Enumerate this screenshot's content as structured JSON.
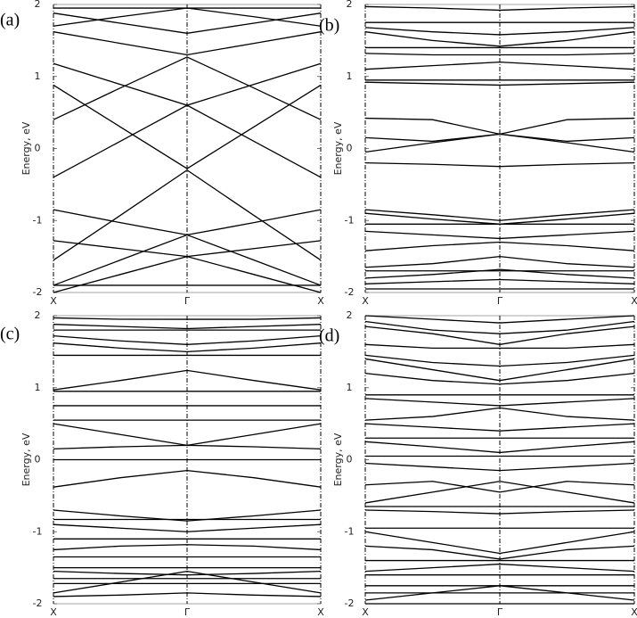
{
  "chart_data": [
    {
      "type": "line",
      "panel_label": "(a)",
      "ylabel": "Energy, eV",
      "categories": [
        "X",
        null,
        "Γ",
        null,
        "X"
      ],
      "ylim": [
        -2,
        2
      ],
      "yticks": [
        -2,
        -1,
        0,
        1,
        2
      ],
      "grid": false,
      "color": "#000000",
      "series": [
        {
          "values": [
            1.95,
            1.95,
            1.95,
            1.95,
            1.95
          ]
        },
        {
          "values": [
            1.88,
            1.74,
            1.6,
            1.74,
            1.88
          ]
        },
        {
          "values": [
            1.7,
            1.83,
            1.95,
            1.83,
            1.7
          ]
        },
        {
          "values": [
            1.62,
            1.46,
            1.3,
            1.46,
            1.62
          ]
        },
        {
          "values": [
            1.18,
            0.89,
            0.6,
            0.89,
            1.18
          ]
        },
        {
          "values": [
            0.88,
            0.3,
            -0.28,
            0.3,
            0.88
          ]
        },
        {
          "values": [
            0.4,
            0.84,
            1.27,
            0.84,
            0.4
          ]
        },
        {
          "values": [
            -0.4,
            0.1,
            0.6,
            0.1,
            -0.4
          ]
        },
        {
          "values": [
            -0.85,
            -1.03,
            -1.2,
            -1.03,
            -0.85
          ]
        },
        {
          "values": [
            -1.28,
            -1.39,
            -1.5,
            -1.39,
            -1.28
          ]
        },
        {
          "values": [
            -1.55,
            -0.93,
            -0.3,
            -0.93,
            -1.55
          ]
        },
        {
          "values": [
            -1.9,
            -1.55,
            -1.2,
            -1.55,
            -1.9
          ]
        },
        {
          "values": [
            -2,
            -1.75,
            -1.5,
            -1.75,
            -2
          ]
        },
        {
          "values": [
            -1.9,
            -1.9,
            -1.9,
            -1.9,
            -1.9
          ]
        }
      ]
    },
    {
      "type": "line",
      "panel_label": "(b)",
      "ylabel": "Energy, eV",
      "categories": [
        "X",
        null,
        "Γ",
        null,
        "X"
      ],
      "ylim": [
        -2,
        2
      ],
      "yticks": [
        -2,
        -1,
        0,
        1,
        2
      ],
      "grid": false,
      "color": "#000000",
      "series": [
        {
          "values": [
            1.97,
            1.95,
            1.92,
            1.95,
            1.97
          ]
        },
        {
          "values": [
            1.75,
            1.75,
            1.75,
            1.75,
            1.75
          ]
        },
        {
          "values": [
            1.68,
            1.62,
            1.58,
            1.62,
            1.68
          ]
        },
        {
          "values": [
            1.62,
            1.5,
            1.42,
            1.5,
            1.62
          ]
        },
        {
          "values": [
            1.4,
            1.4,
            1.4,
            1.4,
            1.4
          ]
        },
        {
          "values": [
            1.32,
            1.3,
            1.3,
            1.3,
            1.32
          ]
        },
        {
          "values": [
            1.1,
            1.15,
            1.2,
            1.15,
            1.1
          ]
        },
        {
          "values": [
            0.95,
            0.95,
            0.95,
            0.95,
            0.95
          ]
        },
        {
          "values": [
            0.92,
            0.9,
            0.88,
            0.9,
            0.92
          ]
        },
        {
          "values": [
            0.42,
            0.4,
            0.2,
            0.4,
            0.42
          ]
        },
        {
          "values": [
            0.15,
            0.1,
            0.2,
            0.1,
            0.15
          ]
        },
        {
          "values": [
            -0.05,
            0.08,
            0.2,
            0.08,
            -0.05
          ]
        },
        {
          "values": [
            -0.2,
            -0.22,
            -0.25,
            -0.22,
            -0.2
          ]
        },
        {
          "values": [
            -0.85,
            -0.92,
            -1.0,
            -0.92,
            -0.85
          ]
        },
        {
          "values": [
            -0.9,
            -0.98,
            -1.05,
            -0.98,
            -0.9
          ]
        },
        {
          "values": [
            -1.05,
            -1.05,
            -1.05,
            -1.05,
            -1.05
          ]
        },
        {
          "values": [
            -1.15,
            -1.2,
            -1.25,
            -1.2,
            -1.15
          ]
        },
        {
          "values": [
            -1.42,
            -1.35,
            -1.3,
            -1.35,
            -1.42
          ]
        },
        {
          "values": [
            -1.65,
            -1.6,
            -1.5,
            -1.6,
            -1.65
          ]
        },
        {
          "values": [
            -1.7,
            -1.7,
            -1.7,
            -1.7,
            -1.7
          ]
        },
        {
          "values": [
            -1.8,
            -1.75,
            -1.68,
            -1.75,
            -1.8
          ]
        },
        {
          "values": [
            -1.88,
            -1.85,
            -1.82,
            -1.85,
            -1.88
          ]
        },
        {
          "values": [
            -1.95,
            -1.95,
            -1.95,
            -1.95,
            -1.95
          ]
        }
      ]
    },
    {
      "type": "line",
      "panel_label": "(c)",
      "ylabel": "Energy, eV",
      "categories": [
        "X",
        null,
        "Γ",
        null,
        "X"
      ],
      "ylim": [
        -2,
        2
      ],
      "yticks": [
        -2,
        -1,
        0,
        1,
        2
      ],
      "grid": false,
      "color": "#000000",
      "series": [
        {
          "values": [
            1.97,
            1.95,
            1.95,
            1.95,
            1.97
          ]
        },
        {
          "values": [
            1.88,
            1.85,
            1.82,
            1.85,
            1.88
          ]
        },
        {
          "values": [
            1.8,
            1.8,
            1.8,
            1.8,
            1.8
          ]
        },
        {
          "values": [
            1.72,
            1.65,
            1.6,
            1.65,
            1.72
          ]
        },
        {
          "values": [
            1.62,
            1.55,
            1.5,
            1.55,
            1.62
          ]
        },
        {
          "values": [
            1.45,
            1.45,
            1.45,
            1.45,
            1.45
          ]
        },
        {
          "values": [
            0.97,
            1.1,
            1.24,
            1.1,
            0.97
          ]
        },
        {
          "values": [
            0.95,
            0.95,
            0.95,
            0.95,
            0.95
          ]
        },
        {
          "values": [
            0.75,
            0.75,
            0.75,
            0.75,
            0.75
          ]
        },
        {
          "values": [
            0.55,
            0.55,
            0.55,
            0.55,
            0.55
          ]
        },
        {
          "values": [
            0.5,
            0.35,
            0.2,
            0.35,
            0.5
          ]
        },
        {
          "values": [
            0.15,
            0.18,
            0.2,
            0.18,
            0.15
          ]
        },
        {
          "values": [
            0,
            0,
            0,
            0,
            0
          ]
        },
        {
          "values": [
            -0.38,
            -0.25,
            -0.15,
            -0.25,
            -0.38
          ]
        },
        {
          "values": [
            -0.7,
            -0.78,
            -0.85,
            -0.78,
            -0.7
          ]
        },
        {
          "values": [
            -0.83,
            -0.83,
            -0.83,
            -0.83,
            -0.83
          ]
        },
        {
          "values": [
            -0.9,
            -0.95,
            -1.0,
            -0.95,
            -0.9
          ]
        },
        {
          "values": [
            -1.1,
            -1.1,
            -1.1,
            -1.1,
            -1.1
          ]
        },
        {
          "values": [
            -1.25,
            -1.2,
            -1.18,
            -1.2,
            -1.25
          ]
        },
        {
          "values": [
            -1.35,
            -1.35,
            -1.35,
            -1.35,
            -1.35
          ]
        },
        {
          "values": [
            -1.5,
            -1.5,
            -1.5,
            -1.5,
            -1.5
          ]
        },
        {
          "values": [
            -1.55,
            -1.58,
            -1.6,
            -1.58,
            -1.55
          ]
        },
        {
          "values": [
            -1.65,
            -1.65,
            -1.65,
            -1.65,
            -1.65
          ]
        },
        {
          "values": [
            -1.72,
            -1.72,
            -1.72,
            -1.72,
            -1.72
          ]
        },
        {
          "values": [
            -1.85,
            -1.7,
            -1.55,
            -1.7,
            -1.85
          ]
        },
        {
          "values": [
            -1.9,
            -1.88,
            -1.85,
            -1.88,
            -1.9
          ]
        }
      ]
    },
    {
      "type": "line",
      "panel_label": "(d)",
      "ylabel": "Energy, eV",
      "categories": [
        "X",
        null,
        "Γ",
        null,
        "X"
      ],
      "ylim": [
        -2,
        2
      ],
      "yticks": [
        -2,
        -1,
        0,
        1,
        2
      ],
      "grid": false,
      "color": "#000000",
      "series": [
        {
          "values": [
            2.0,
            1.95,
            1.9,
            1.95,
            2.0
          ]
        },
        {
          "values": [
            1.92,
            1.8,
            1.75,
            1.8,
            1.92
          ]
        },
        {
          "values": [
            1.85,
            1.75,
            1.6,
            1.75,
            1.85
          ]
        },
        {
          "values": [
            1.6,
            1.55,
            1.55,
            1.55,
            1.6
          ]
        },
        {
          "values": [
            1.45,
            1.35,
            1.3,
            1.35,
            1.45
          ]
        },
        {
          "values": [
            1.4,
            1.25,
            1.1,
            1.25,
            1.4
          ]
        },
        {
          "values": [
            1.2,
            1.1,
            1.05,
            1.1,
            1.2
          ]
        },
        {
          "values": [
            0.9,
            0.9,
            0.9,
            0.9,
            0.9
          ]
        },
        {
          "values": [
            0.85,
            0.8,
            0.75,
            0.8,
            0.85
          ]
        },
        {
          "values": [
            0.55,
            0.6,
            0.72,
            0.6,
            0.55
          ]
        },
        {
          "values": [
            0.5,
            0.45,
            0.4,
            0.45,
            0.5
          ]
        },
        {
          "values": [
            0.3,
            0.3,
            0.3,
            0.3,
            0.3
          ]
        },
        {
          "values": [
            0.25,
            0.18,
            0.1,
            0.18,
            0.25
          ]
        },
        {
          "values": [
            0.05,
            0.05,
            0.05,
            0.05,
            0.05
          ]
        },
        {
          "values": [
            -0.05,
            -0.1,
            -0.15,
            -0.1,
            -0.05
          ]
        },
        {
          "values": [
            -0.35,
            -0.3,
            -0.45,
            -0.3,
            -0.35
          ]
        },
        {
          "values": [
            -0.6,
            -0.45,
            -0.3,
            -0.45,
            -0.6
          ]
        },
        {
          "values": [
            -0.65,
            -0.65,
            -0.65,
            -0.65,
            -0.65
          ]
        },
        {
          "values": [
            -0.7,
            -0.72,
            -0.75,
            -0.72,
            -0.7
          ]
        },
        {
          "values": [
            -0.95,
            -0.95,
            -0.95,
            -0.95,
            -0.95
          ]
        },
        {
          "values": [
            -1.0,
            -1.15,
            -1.3,
            -1.15,
            -1.0
          ]
        },
        {
          "values": [
            -1.2,
            -1.25,
            -1.38,
            -1.25,
            -1.2
          ]
        },
        {
          "values": [
            -1.4,
            -1.4,
            -1.4,
            -1.4,
            -1.4
          ]
        },
        {
          "values": [
            -1.55,
            -1.5,
            -1.45,
            -1.5,
            -1.55
          ]
        },
        {
          "values": [
            -1.6,
            -1.6,
            -1.6,
            -1.6,
            -1.6
          ]
        },
        {
          "values": [
            -1.75,
            -1.75,
            -1.75,
            -1.75,
            -1.75
          ]
        },
        {
          "values": [
            -1.85,
            -1.85,
            -1.85,
            -1.85,
            -1.85
          ]
        },
        {
          "values": [
            -1.95,
            -1.85,
            -1.75,
            -1.85,
            -1.95
          ]
        },
        {
          "values": [
            -2.0,
            -2.0,
            -2.0,
            -2.0,
            -2.0
          ]
        }
      ]
    }
  ]
}
